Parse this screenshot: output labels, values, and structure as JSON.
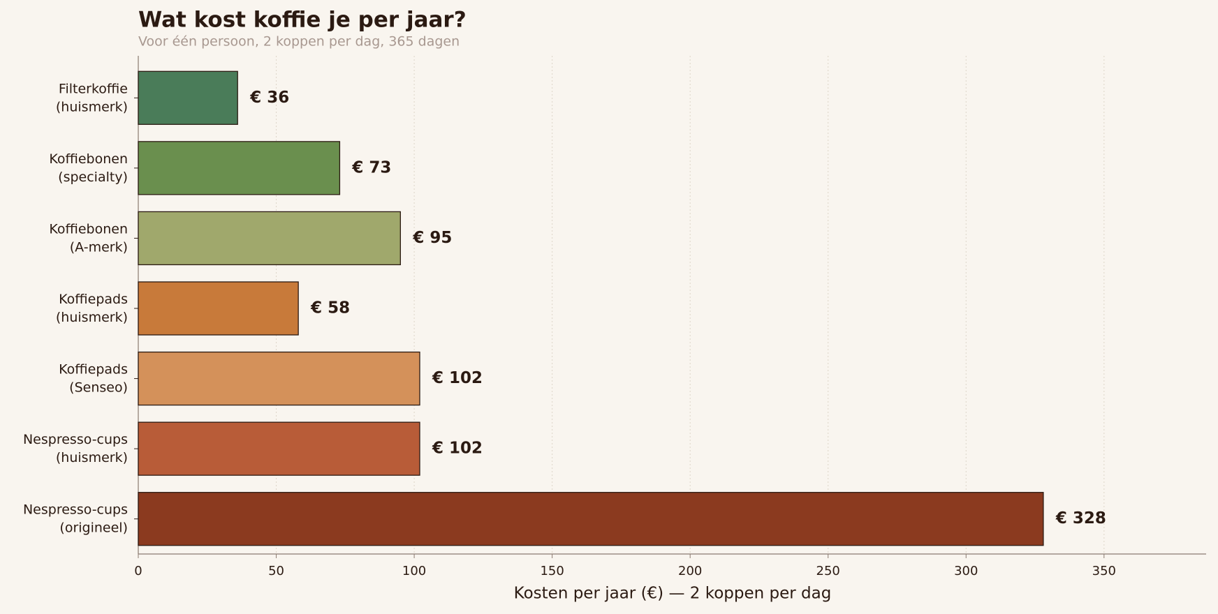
{
  "chart_data": {
    "type": "barh",
    "title": "Wat kost koffie je per jaar?",
    "subtitle": "Voor één persoon, 2 koppen per dag, 365 dagen",
    "xlabel": "Kosten per jaar (€) — 2 koppen per dag",
    "categories": [
      "Filterkoffie\n(huismerk)",
      "Koffiebonen\n(specialty)",
      "Koffiebonen\n(A-merk)",
      "Koffiepads\n(huismerk)",
      "Koffiepads\n(Senseo)",
      "Nespresso-cups\n(huismerk)",
      "Nespresso-cups\n(origineel)"
    ],
    "values": [
      36,
      73,
      95,
      58,
      102,
      102,
      328
    ],
    "value_labels": [
      "€ 36",
      "€ 73",
      "€ 95",
      "€ 58",
      "€ 102",
      "€ 102",
      "€ 328"
    ],
    "colors": [
      "#4a7c59",
      "#6a8f4e",
      "#a0a86c",
      "#c87a3a",
      "#d4915a",
      "#b85c38",
      "#8b3a1f"
    ],
    "xlim": [
      0,
      387
    ],
    "xticks": [
      0,
      50,
      100,
      150,
      200,
      250,
      300,
      350
    ],
    "grid": true
  }
}
